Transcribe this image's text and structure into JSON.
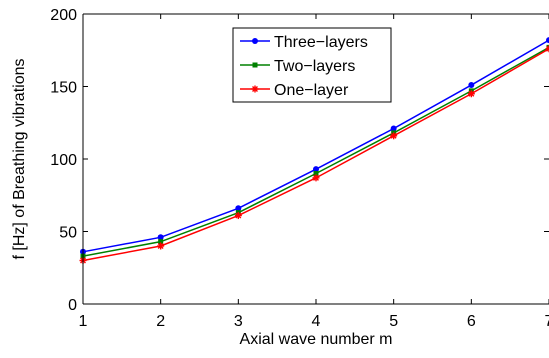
{
  "chart_data": {
    "type": "line",
    "title": "",
    "xlabel": "Axial wave number m",
    "ylabel": "f [Hz] of Breathing vibrations",
    "x": [
      1,
      2,
      3,
      4,
      5,
      6,
      7
    ],
    "xlim": [
      1,
      7
    ],
    "ylim": [
      0,
      200
    ],
    "xticks": [
      "1",
      "2",
      "3",
      "4",
      "5",
      "6",
      "7"
    ],
    "yticks": [
      "0",
      "50",
      "100",
      "150",
      "200"
    ],
    "grid": false,
    "legend_position": "top-center",
    "series": [
      {
        "name": "Three−layers",
        "values": [
          36,
          46,
          66,
          93,
          121,
          151,
          182
        ],
        "color": "#0000ff",
        "marker": "dot"
      },
      {
        "name": "Two−layers",
        "values": [
          33,
          43,
          63,
          90,
          118,
          147,
          177
        ],
        "color": "#008000",
        "marker": "square"
      },
      {
        "name": "One−layer",
        "values": [
          30,
          40,
          61,
          87,
          116,
          145,
          176
        ],
        "color": "#ff0000",
        "marker": "star"
      }
    ]
  }
}
